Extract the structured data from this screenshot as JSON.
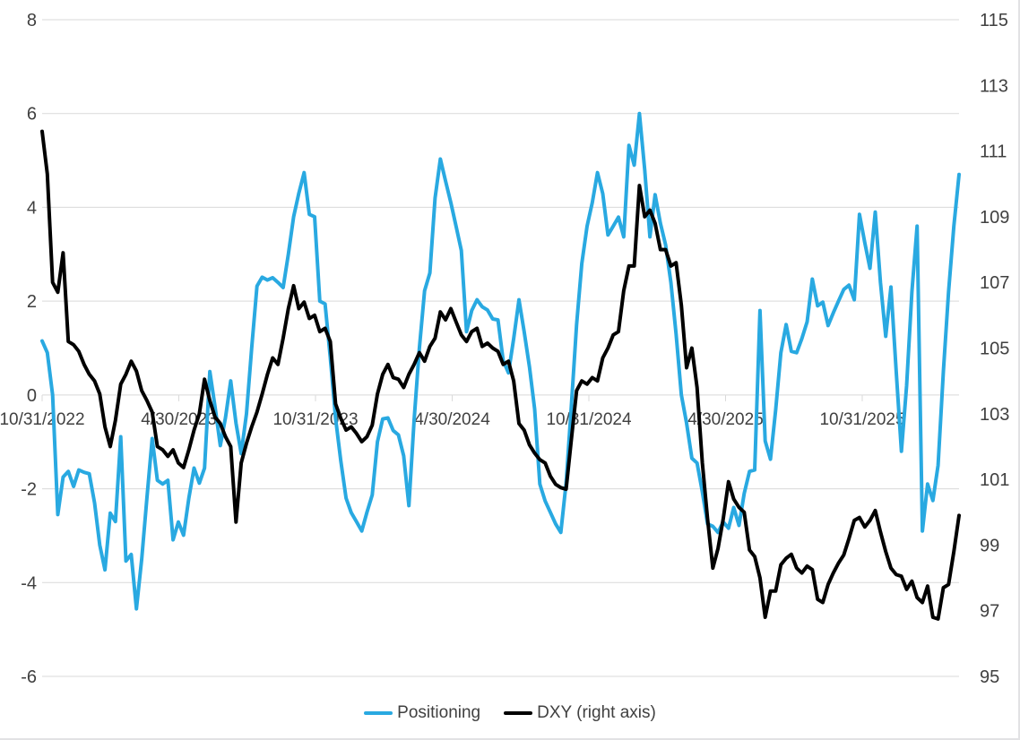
{
  "chart_data": {
    "type": "line",
    "title": "",
    "x_tick_labels": [
      "10/31/2022",
      "4/30/2023",
      "10/31/2023",
      "4/30/2024",
      "10/31/2024",
      "4/30/2025",
      "10/31/2025"
    ],
    "left_axis": {
      "ticks": [
        8,
        6,
        4,
        2,
        0,
        -2,
        -4,
        -6
      ],
      "range": [
        -6,
        8
      ]
    },
    "right_axis": {
      "ticks": [
        115,
        113,
        111,
        109,
        107,
        105,
        103,
        101,
        99,
        97,
        95
      ],
      "range": [
        95,
        115
      ]
    },
    "grid": "horizontal",
    "legend_position": "bottom",
    "frequency": "weekly",
    "series": [
      {
        "name": "Positioning",
        "axis": "left",
        "color": "#29A9E1",
        "width": 4,
        "values": [
          1.15,
          0.9,
          0.0,
          -2.55,
          -1.75,
          -1.63,
          -1.95,
          -1.6,
          -1.65,
          -1.68,
          -2.3,
          -3.2,
          -3.73,
          -2.52,
          -2.7,
          -0.89,
          -3.54,
          -3.4,
          -4.56,
          -3.5,
          -2.2,
          -0.93,
          -1.82,
          -1.9,
          -1.82,
          -3.09,
          -2.71,
          -2.99,
          -2.2,
          -1.56,
          -1.88,
          -1.56,
          0.5,
          -0.25,
          -1.08,
          -0.48,
          0.3,
          -0.6,
          -1.25,
          -0.4,
          1.0,
          2.32,
          2.51,
          2.45,
          2.5,
          2.4,
          2.29,
          3.0,
          3.8,
          4.3,
          4.74,
          3.85,
          3.8,
          2.0,
          1.94,
          0.8,
          -0.5,
          -1.4,
          -2.2,
          -2.51,
          -2.7,
          -2.9,
          -2.5,
          -2.13,
          -1.0,
          -0.51,
          -0.49,
          -0.76,
          -0.85,
          -1.3,
          -2.36,
          -0.54,
          1.0,
          2.22,
          2.6,
          4.2,
          5.03,
          4.56,
          4.1,
          3.6,
          3.08,
          1.35,
          1.8,
          2.03,
          1.88,
          1.81,
          1.62,
          1.6,
          0.73,
          0.47,
          1.2,
          2.03,
          1.35,
          0.6,
          -0.3,
          -1.9,
          -2.26,
          -2.5,
          -2.75,
          -2.93,
          -1.88,
          -0.25,
          1.5,
          2.8,
          3.6,
          4.1,
          4.74,
          4.29,
          3.41,
          3.6,
          3.79,
          3.37,
          5.32,
          4.9,
          6.0,
          4.8,
          3.37,
          4.27,
          3.66,
          3.2,
          2.4,
          1.3,
          0.0,
          -0.6,
          -1.35,
          -1.45,
          -2.07,
          -2.75,
          -2.8,
          -2.93,
          -2.71,
          -2.84,
          -2.4,
          -2.78,
          -2.1,
          -1.63,
          -1.6,
          1.8,
          -0.98,
          -1.37,
          -0.32,
          0.9,
          1.5,
          0.93,
          0.9,
          1.2,
          1.56,
          2.47,
          1.9,
          1.98,
          1.48,
          1.75,
          2.0,
          2.25,
          2.34,
          2.03,
          3.85,
          3.25,
          2.7,
          3.9,
          2.4,
          1.25,
          2.3,
          0.5,
          -1.2,
          0.2,
          2.2,
          3.6,
          -2.9,
          -1.9,
          -2.25,
          -1.5,
          0.5,
          2.2,
          3.6,
          4.7
        ]
      },
      {
        "name": "DXY (right axis)",
        "axis": "right",
        "color": "#000000",
        "width": 4,
        "values": [
          111.6,
          110.3,
          107.0,
          106.7,
          107.9,
          105.2,
          105.1,
          104.9,
          104.5,
          104.2,
          104.0,
          103.6,
          102.6,
          102.0,
          102.8,
          103.9,
          104.2,
          104.6,
          104.3,
          103.7,
          103.4,
          103.05,
          102.0,
          101.9,
          101.7,
          101.9,
          101.5,
          101.36,
          101.9,
          102.5,
          103.0,
          104.05,
          103.4,
          102.9,
          102.7,
          102.3,
          102.0,
          99.7,
          101.5,
          102.1,
          102.6,
          103.05,
          103.6,
          104.2,
          104.7,
          104.5,
          105.3,
          106.2,
          106.9,
          106.2,
          106.4,
          105.9,
          106.0,
          105.5,
          105.6,
          105.2,
          103.3,
          102.86,
          102.5,
          102.6,
          102.4,
          102.15,
          102.3,
          102.65,
          103.6,
          104.2,
          104.5,
          104.1,
          104.05,
          103.8,
          104.2,
          104.5,
          104.86,
          104.6,
          105.05,
          105.3,
          106.1,
          105.86,
          106.2,
          105.8,
          105.4,
          105.2,
          105.5,
          105.6,
          105.05,
          105.15,
          105.0,
          104.9,
          104.5,
          104.6,
          104.0,
          102.7,
          102.5,
          102.05,
          101.8,
          101.6,
          101.5,
          101.1,
          100.85,
          100.75,
          100.7,
          102.2,
          103.7,
          104.0,
          103.9,
          104.1,
          104.0,
          104.7,
          105.0,
          105.4,
          105.5,
          106.75,
          107.5,
          107.5,
          109.95,
          109.0,
          109.2,
          108.8,
          108.0,
          108.0,
          107.5,
          107.6,
          106.3,
          104.4,
          105.0,
          103.8,
          101.5,
          99.8,
          98.3,
          98.9,
          99.8,
          100.93,
          100.4,
          100.15,
          100.0,
          98.85,
          98.65,
          98.0,
          96.8,
          97.6,
          97.6,
          98.4,
          98.6,
          98.72,
          98.3,
          98.15,
          98.36,
          98.25,
          97.35,
          97.25,
          97.8,
          98.15,
          98.45,
          98.7,
          99.2,
          99.75,
          99.84,
          99.55,
          99.75,
          100.05,
          99.4,
          98.8,
          98.3,
          98.1,
          98.05,
          97.65,
          97.9,
          97.4,
          97.25,
          97.75,
          96.8,
          96.75,
          97.7,
          97.8,
          98.8,
          99.9
        ]
      }
    ],
    "colors": {
      "grid": "#D9D9D9",
      "axis_text": "#404040",
      "background": "#FFFFFF"
    }
  },
  "legend": {
    "items": [
      {
        "label": "Positioning"
      },
      {
        "label": "DXY (right axis)"
      }
    ]
  }
}
